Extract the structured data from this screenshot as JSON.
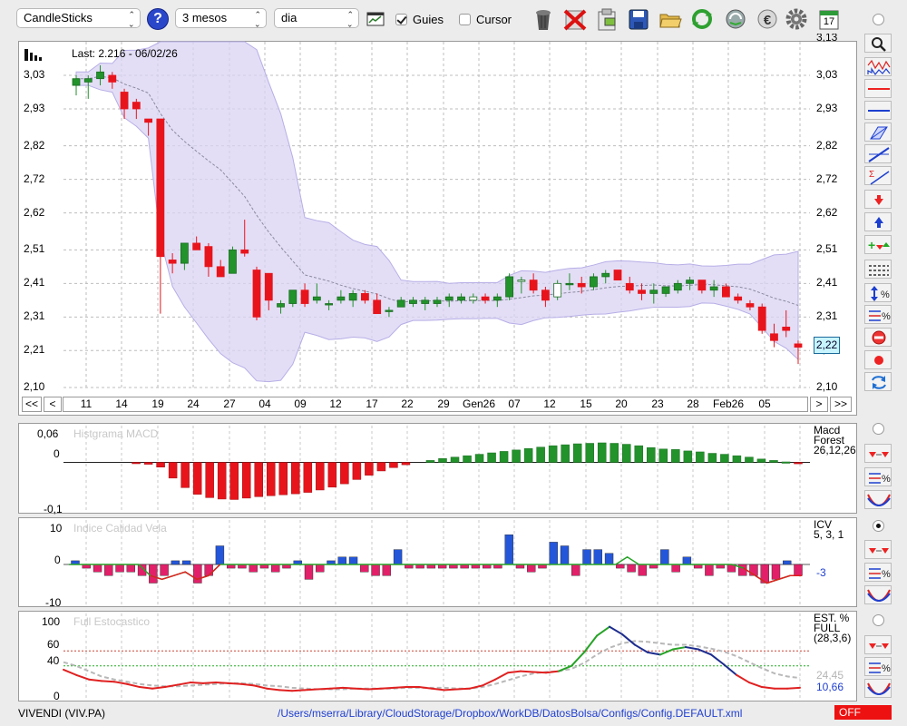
{
  "toolbar": {
    "chart_type": "CandleSticks",
    "period": "3 mesos",
    "interval": "dia",
    "guides_label": "Guies",
    "guides_checked": true,
    "cursor_label": "Cursor",
    "cursor_checked": false,
    "icons": [
      "help-icon",
      "table-icon",
      "trash-icon",
      "delete-icon",
      "clipboard-icon",
      "save-icon",
      "folder-open-icon",
      "refresh-icon",
      "sync-icon",
      "euro-icon",
      "gear-icon",
      "calendar-icon"
    ],
    "calendar_day": "17"
  },
  "main_chart": {
    "last_label": "Last: 2.216 - 06/02/26",
    "y_ticks": [
      "3,03",
      "2,93",
      "2,82",
      "2,72",
      "2,62",
      "2,51",
      "2,41",
      "2,31",
      "2,21",
      "2,10"
    ],
    "y_top_cut": "3,13",
    "current_price_badge": "2,22",
    "x_ticks": [
      "11",
      "14",
      "19",
      "24",
      "27",
      "04",
      "09",
      "12",
      "17",
      "22",
      "29",
      "Gen26",
      "07",
      "12",
      "15",
      "20",
      "23",
      "28",
      "Feb26",
      "05"
    ],
    "nav": {
      "first": "<<",
      "prev": "<",
      "next": ">",
      "last": ">>"
    }
  },
  "macd_panel": {
    "title": "Histgrama MACD",
    "y_ticks": [
      "0,06",
      "0",
      "-0,1"
    ],
    "side_label": [
      "Macd",
      "Forest",
      "26,12,26"
    ]
  },
  "icv_panel": {
    "title": "Indice Calidad Vela",
    "y_ticks": [
      "10",
      "0",
      "-10"
    ],
    "side_label": [
      "ICV",
      "5, 3, 1"
    ],
    "value": "-3"
  },
  "stoch_panel": {
    "title": "Full Estocastico",
    "y_ticks": [
      "100",
      "60",
      "40",
      "0"
    ],
    "side_label": [
      "EST. %",
      "FULL",
      "(28,3,6)"
    ],
    "value_d": "24,45",
    "value_k": "10,66"
  },
  "status": {
    "ticker": "VIVENDI (VIV.PA)",
    "config_path": "/Users/mserra/Library/CloudStorage/Dropbox/WorkDB/DatosBolsa/Configs/Config.DEFAULT.xml",
    "state": "OFF"
  },
  "colors": {
    "up": "#22922a",
    "down": "#e8141c",
    "band": "#d9d3f3",
    "accent": "#1f3fd1"
  },
  "chart_data": [
    {
      "type": "candlestick",
      "title": "",
      "ylim": [
        2.1,
        3.13
      ],
      "ohlc": [
        [
          3.0,
          3.03,
          2.97,
          3.02
        ],
        [
          3.01,
          3.03,
          2.96,
          3.02
        ],
        [
          3.02,
          3.06,
          3.0,
          3.04
        ],
        [
          3.03,
          3.04,
          2.99,
          3.01
        ],
        [
          2.98,
          2.99,
          2.9,
          2.93
        ],
        [
          2.95,
          2.96,
          2.9,
          2.93
        ],
        [
          2.9,
          2.9,
          2.85,
          2.89
        ],
        [
          2.9,
          2.9,
          2.32,
          2.49
        ],
        [
          2.48,
          2.5,
          2.44,
          2.47
        ],
        [
          2.47,
          2.53,
          2.45,
          2.53
        ],
        [
          2.53,
          2.55,
          2.51,
          2.51
        ],
        [
          2.52,
          2.53,
          2.43,
          2.46
        ],
        [
          2.46,
          2.48,
          2.43,
          2.43
        ],
        [
          2.44,
          2.52,
          2.44,
          2.51
        ],
        [
          2.51,
          2.6,
          2.49,
          2.5
        ],
        [
          2.45,
          2.46,
          2.3,
          2.31
        ],
        [
          2.44,
          2.44,
          2.33,
          2.36
        ],
        [
          2.34,
          2.36,
          2.32,
          2.35
        ],
        [
          2.35,
          2.39,
          2.34,
          2.39
        ],
        [
          2.39,
          2.41,
          2.34,
          2.35
        ],
        [
          2.36,
          2.41,
          2.35,
          2.37
        ],
        [
          2.35,
          2.36,
          2.33,
          2.35
        ],
        [
          2.36,
          2.39,
          2.35,
          2.37
        ],
        [
          2.36,
          2.39,
          2.34,
          2.38
        ],
        [
          2.38,
          2.39,
          2.35,
          2.36
        ],
        [
          2.36,
          2.38,
          2.33,
          2.32
        ],
        [
          2.33,
          2.34,
          2.31,
          2.33
        ],
        [
          2.34,
          2.37,
          2.34,
          2.36
        ],
        [
          2.35,
          2.37,
          2.34,
          2.36
        ],
        [
          2.35,
          2.37,
          2.33,
          2.36
        ],
        [
          2.35,
          2.37,
          2.34,
          2.36
        ],
        [
          2.36,
          2.38,
          2.34,
          2.37
        ],
        [
          2.36,
          2.38,
          2.35,
          2.37
        ],
        [
          2.36,
          2.38,
          2.35,
          2.37
        ],
        [
          2.37,
          2.38,
          2.35,
          2.36
        ],
        [
          2.36,
          2.38,
          2.34,
          2.37
        ],
        [
          2.37,
          2.44,
          2.36,
          2.43
        ],
        [
          2.42,
          2.43,
          2.38,
          2.42
        ],
        [
          2.42,
          2.44,
          2.38,
          2.39
        ],
        [
          2.39,
          2.4,
          2.34,
          2.36
        ],
        [
          2.37,
          2.42,
          2.36,
          2.41
        ],
        [
          2.41,
          2.44,
          2.39,
          2.41
        ],
        [
          2.41,
          2.43,
          2.38,
          2.4
        ],
        [
          2.4,
          2.44,
          2.39,
          2.43
        ],
        [
          2.43,
          2.45,
          2.41,
          2.44
        ],
        [
          2.45,
          2.45,
          2.42,
          2.42
        ],
        [
          2.41,
          2.43,
          2.38,
          2.39
        ],
        [
          2.39,
          2.41,
          2.36,
          2.38
        ],
        [
          2.38,
          2.41,
          2.35,
          2.39
        ],
        [
          2.38,
          2.4,
          2.37,
          2.4
        ],
        [
          2.39,
          2.42,
          2.38,
          2.41
        ],
        [
          2.41,
          2.43,
          2.39,
          2.42
        ],
        [
          2.42,
          2.42,
          2.38,
          2.39
        ],
        [
          2.39,
          2.42,
          2.37,
          2.4
        ],
        [
          2.4,
          2.41,
          2.37,
          2.37
        ],
        [
          2.37,
          2.38,
          2.35,
          2.36
        ],
        [
          2.35,
          2.36,
          2.33,
          2.34
        ],
        [
          2.34,
          2.35,
          2.26,
          2.27
        ],
        [
          2.26,
          2.29,
          2.22,
          2.24
        ],
        [
          2.28,
          2.33,
          2.25,
          2.27
        ],
        [
          2.23,
          2.24,
          2.17,
          2.22
        ]
      ]
    },
    {
      "type": "bar",
      "title": "Histgrama MACD",
      "ylim": [
        -0.1,
        0.06
      ],
      "values": [
        0,
        0,
        0,
        0,
        -0.002,
        -0.004,
        -0.01,
        -0.033,
        -0.053,
        -0.067,
        -0.074,
        -0.077,
        -0.078,
        -0.075,
        -0.072,
        -0.07,
        -0.068,
        -0.066,
        -0.063,
        -0.058,
        -0.052,
        -0.045,
        -0.036,
        -0.027,
        -0.018,
        -0.011,
        -0.005,
        0,
        0.004,
        0.008,
        0.011,
        0.014,
        0.017,
        0.02,
        0.023,
        0.026,
        0.029,
        0.032,
        0.035,
        0.037,
        0.039,
        0.04,
        0.041,
        0.04,
        0.038,
        0.035,
        0.031,
        0.028,
        0.027,
        0.024,
        0.022,
        0.019,
        0.017,
        0.014,
        0.011,
        0.007,
        0.004,
        0.001,
        -0.003
      ]
    },
    {
      "type": "bar",
      "title": "Indice Calidad Vela",
      "ylim": [
        -10,
        10
      ],
      "values": [
        1,
        -1,
        -2,
        -3,
        -2,
        -2,
        -3,
        -5,
        -3,
        1,
        1,
        -5,
        -3,
        5,
        -1,
        -1,
        -2,
        -1,
        -2,
        -1,
        1,
        -4,
        -2,
        1,
        2,
        2,
        -2,
        -3,
        -3,
        4,
        -1,
        -1,
        -1,
        -1,
        -1,
        -1,
        -1,
        -1,
        -1,
        8,
        -1,
        -2,
        -1,
        6,
        5,
        -3,
        4,
        4,
        3,
        -1,
        -2,
        -3,
        -1,
        4,
        -2,
        2,
        -1,
        -3,
        -1,
        -2,
        -3,
        -3,
        -5,
        -4,
        1,
        -3
      ],
      "series": [
        {
          "name": "ICV",
          "values": [
            0,
            0,
            0,
            0,
            0,
            0,
            0,
            -3,
            -4,
            -3,
            -2,
            -4,
            -3,
            0,
            0,
            0,
            0,
            0,
            0,
            0,
            0,
            0,
            0,
            0,
            0,
            0,
            0,
            0,
            0,
            0,
            0,
            0,
            0,
            0,
            0,
            0,
            0,
            0,
            0,
            0,
            0,
            0,
            0,
            0,
            0,
            0,
            0,
            0,
            2,
            0,
            0,
            0,
            0,
            0,
            0,
            0,
            0,
            0,
            -1,
            -3,
            -5,
            -4,
            -3,
            -3
          ]
        }
      ]
    },
    {
      "type": "line",
      "title": "Full Estocastico",
      "ylim": [
        0,
        100
      ],
      "series": [
        {
          "name": "%K",
          "values": [
            35,
            28,
            22,
            20,
            19,
            16,
            12,
            10,
            12,
            15,
            18,
            17,
            18,
            17,
            16,
            14,
            10,
            8,
            7,
            8,
            9,
            10,
            11,
            10,
            9,
            10,
            11,
            12,
            12,
            10,
            8,
            9,
            10,
            14,
            22,
            31,
            33,
            32,
            31,
            33,
            40,
            58,
            80,
            92,
            82,
            68,
            58,
            55,
            62,
            65,
            62,
            55,
            42,
            28,
            18,
            12,
            10,
            10,
            11
          ]
        },
        {
          "name": "%D",
          "values": [
            45,
            40,
            33,
            26,
            22,
            19,
            16,
            14,
            13,
            13,
            14,
            15,
            16,
            17,
            17,
            16,
            14,
            13,
            11,
            10,
            9,
            9,
            9,
            10,
            10,
            10,
            10,
            11,
            11,
            11,
            11,
            10,
            10,
            12,
            16,
            21,
            26,
            30,
            32,
            33,
            36,
            44,
            55,
            64,
            70,
            73,
            72,
            70,
            68,
            68,
            66,
            63,
            59,
            53,
            45,
            37,
            30,
            26,
            24
          ]
        }
      ]
    }
  ]
}
